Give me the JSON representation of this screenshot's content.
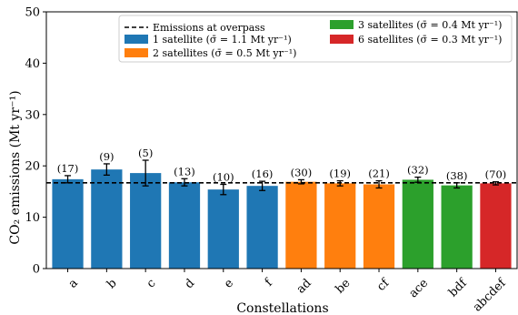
{
  "chart_data": {
    "type": "bar",
    "categories": [
      "a",
      "b",
      "c",
      "d",
      "e",
      "f",
      "ad",
      "be",
      "cf",
      "ace",
      "bdf",
      "abcdef"
    ],
    "values": [
      17.4,
      19.3,
      18.6,
      16.8,
      15.4,
      16.1,
      16.9,
      16.6,
      16.4,
      17.3,
      16.2,
      16.6
    ],
    "errors": [
      0.7,
      1.1,
      2.5,
      0.7,
      1.0,
      0.9,
      0.4,
      0.5,
      0.7,
      0.5,
      0.5,
      0.3
    ],
    "counts": [
      "(17)",
      "(9)",
      "(5)",
      "(13)",
      "(10)",
      "(16)",
      "(30)",
      "(19)",
      "(21)",
      "(32)",
      "(38)",
      "(70)"
    ],
    "groups": [
      0,
      0,
      0,
      0,
      0,
      0,
      1,
      1,
      1,
      2,
      2,
      3
    ],
    "series": [
      {
        "name": "1 satellite (σ̄ = 1.1 Mt yr⁻¹)",
        "color": "#1f77b4"
      },
      {
        "name": "2 satellites (σ̄ = 0.5 Mt yr⁻¹)",
        "color": "#ff7f0e"
      },
      {
        "name": "3 satellites (σ̄ = 0.4 Mt yr⁻¹)",
        "color": "#2ca02c"
      },
      {
        "name": "6 satellites (σ̄ = 0.3 Mt yr⁻¹)",
        "color": "#d62728"
      }
    ],
    "reference_line": {
      "name": "Emissions at overpass",
      "value": 16.7
    },
    "xlabel": "Constellations",
    "ylabel": "CO₂ emissions (Mt yr⁻¹)",
    "ylim": [
      0,
      50
    ],
    "yticks": [
      0,
      10,
      20,
      30,
      40,
      50
    ],
    "legend_position": "upper-right",
    "grid": false
  }
}
